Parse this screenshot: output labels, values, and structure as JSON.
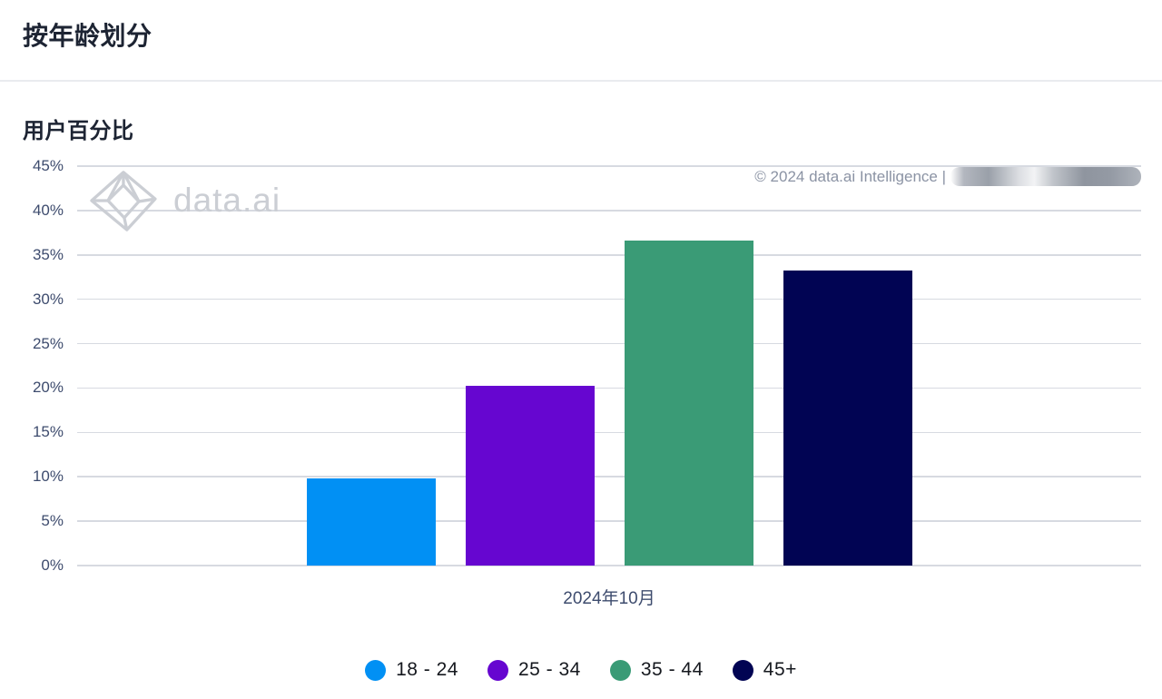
{
  "header": {
    "title": "按年龄划分"
  },
  "chart": {
    "subtitle": "用户百分比",
    "copyright": "© 2024 data.ai Intelligence |",
    "watermark_text": "data.ai"
  },
  "chart_data": {
    "type": "bar",
    "title": "按年龄划分",
    "subtitle": "用户百分比",
    "x_category": "2024年10月",
    "categories": [
      "18 - 24",
      "25 - 34",
      "35 - 44",
      "45+"
    ],
    "values": [
      9.8,
      20.3,
      36.6,
      33.2
    ],
    "colors": [
      "#0190f4",
      "#6606d0",
      "#3a9b76",
      "#010453"
    ],
    "xlabel": "",
    "ylabel": "用户百分比",
    "ylim": [
      0,
      45
    ],
    "ytick_step": 5,
    "ytick_suffix": "%",
    "grid": true,
    "legend_position": "bottom"
  }
}
